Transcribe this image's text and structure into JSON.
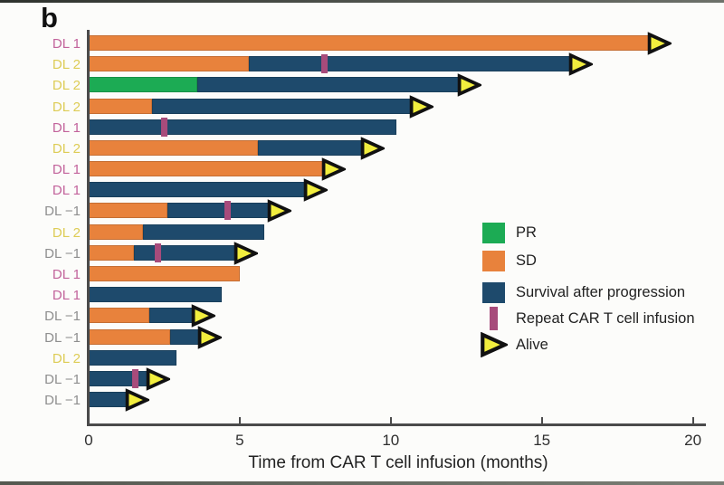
{
  "panel_label": "b",
  "colors": {
    "pr": "#1cab54",
    "sd": "#e8823c",
    "survival_after_progression": "#1e4a6c",
    "repeat_infusion": "#a74b7b",
    "alive_fill": "#f2ee3e",
    "alive_stroke": "#111111",
    "label_dl1": "#c2639b",
    "label_dl2": "#ddcc55",
    "label_dlm1": "#8e8e8e",
    "axis": "#4a4a4a"
  },
  "legend": {
    "items": [
      {
        "key": "pr",
        "swatch": "square",
        "label": "PR"
      },
      {
        "key": "sd",
        "swatch": "square",
        "label": "SD"
      },
      {
        "key": "survival_after_progression",
        "swatch": "square",
        "label": "Survival after progression"
      },
      {
        "key": "repeat_infusion",
        "swatch": "tick",
        "label": "Repeat CAR T cell infusion"
      },
      {
        "key": "alive",
        "swatch": "arrow",
        "label": "Alive"
      }
    ]
  },
  "chart_data": {
    "type": "bar",
    "subtype": "swimmer-plot",
    "title": "",
    "xlabel": "Time from CAR T cell infusion (months)",
    "ylabel": "",
    "xlim": [
      0,
      20
    ],
    "xticks": [
      "0",
      "5",
      "10",
      "15",
      "20"
    ],
    "xtick_values": [
      0,
      5,
      10,
      15,
      20
    ],
    "grid": false,
    "legend_position": "center-right",
    "rows": [
      {
        "label": "DL 1",
        "group": "dl1",
        "segments": [
          {
            "type": "SD",
            "start": 0,
            "end": 18.7
          }
        ],
        "repeat_infusion": [],
        "alive": true
      },
      {
        "label": "DL 2",
        "group": "dl2",
        "segments": [
          {
            "type": "SD",
            "start": 0,
            "end": 5.3
          },
          {
            "type": "survival_after_progression",
            "start": 5.3,
            "end": 16.1
          }
        ],
        "repeat_infusion": [
          7.8
        ],
        "alive": true
      },
      {
        "label": "DL 2",
        "group": "dl2",
        "segments": [
          {
            "type": "PR",
            "start": 0,
            "end": 3.6
          },
          {
            "type": "survival_after_progression",
            "start": 3.6,
            "end": 12.4
          }
        ],
        "repeat_infusion": [],
        "alive": true
      },
      {
        "label": "DL 2",
        "group": "dl2",
        "segments": [
          {
            "type": "SD",
            "start": 0,
            "end": 2.1
          },
          {
            "type": "survival_after_progression",
            "start": 2.1,
            "end": 10.8
          }
        ],
        "repeat_infusion": [],
        "alive": true
      },
      {
        "label": "DL 1",
        "group": "dl1",
        "segments": [
          {
            "type": "survival_after_progression",
            "start": 0,
            "end": 10.2
          }
        ],
        "repeat_infusion": [
          2.5
        ],
        "alive": false
      },
      {
        "label": "DL 2",
        "group": "dl2",
        "segments": [
          {
            "type": "SD",
            "start": 0,
            "end": 5.6
          },
          {
            "type": "survival_after_progression",
            "start": 5.6,
            "end": 9.2
          }
        ],
        "repeat_infusion": [],
        "alive": true
      },
      {
        "label": "DL 1",
        "group": "dl1",
        "segments": [
          {
            "type": "SD",
            "start": 0,
            "end": 7.9
          }
        ],
        "repeat_infusion": [],
        "alive": true
      },
      {
        "label": "DL 1",
        "group": "dl1",
        "segments": [
          {
            "type": "survival_after_progression",
            "start": 0,
            "end": 7.3
          }
        ],
        "repeat_infusion": [],
        "alive": true
      },
      {
        "label": "DL −1",
        "group": "dlm1",
        "segments": [
          {
            "type": "SD",
            "start": 0,
            "end": 2.6
          },
          {
            "type": "survival_after_progression",
            "start": 2.6,
            "end": 6.1
          }
        ],
        "repeat_infusion": [
          4.6
        ],
        "alive": true
      },
      {
        "label": "DL 2",
        "group": "dl2",
        "segments": [
          {
            "type": "SD",
            "start": 0,
            "end": 1.8
          },
          {
            "type": "survival_after_progression",
            "start": 1.8,
            "end": 5.8
          }
        ],
        "repeat_infusion": [],
        "alive": false
      },
      {
        "label": "DL −1",
        "group": "dlm1",
        "segments": [
          {
            "type": "SD",
            "start": 0,
            "end": 1.5
          },
          {
            "type": "survival_after_progression",
            "start": 1.5,
            "end": 5.0
          }
        ],
        "repeat_infusion": [
          2.3
        ],
        "alive": true
      },
      {
        "label": "DL 1",
        "group": "dl1",
        "segments": [
          {
            "type": "SD",
            "start": 0,
            "end": 5.0
          }
        ],
        "repeat_infusion": [],
        "alive": false
      },
      {
        "label": "DL 1",
        "group": "dl1",
        "segments": [
          {
            "type": "survival_after_progression",
            "start": 0,
            "end": 4.4
          }
        ],
        "repeat_infusion": [],
        "alive": false
      },
      {
        "label": "DL −1",
        "group": "dlm1",
        "segments": [
          {
            "type": "SD",
            "start": 0,
            "end": 2.0
          },
          {
            "type": "survival_after_progression",
            "start": 2.0,
            "end": 3.6
          }
        ],
        "repeat_infusion": [],
        "alive": true
      },
      {
        "label": "DL −1",
        "group": "dlm1",
        "segments": [
          {
            "type": "SD",
            "start": 0,
            "end": 2.7
          },
          {
            "type": "survival_after_progression",
            "start": 2.7,
            "end": 3.8
          }
        ],
        "repeat_infusion": [],
        "alive": true
      },
      {
        "label": "DL 2",
        "group": "dl2",
        "segments": [
          {
            "type": "survival_after_progression",
            "start": 0,
            "end": 2.9
          }
        ],
        "repeat_infusion": [],
        "alive": false
      },
      {
        "label": "DL −1",
        "group": "dlm1",
        "segments": [
          {
            "type": "survival_after_progression",
            "start": 0,
            "end": 2.1
          }
        ],
        "repeat_infusion": [
          1.55
        ],
        "alive": true
      },
      {
        "label": "DL −1",
        "group": "dlm1",
        "segments": [
          {
            "type": "survival_after_progression",
            "start": 0,
            "end": 1.4
          }
        ],
        "repeat_infusion": [],
        "alive": true
      }
    ]
  }
}
